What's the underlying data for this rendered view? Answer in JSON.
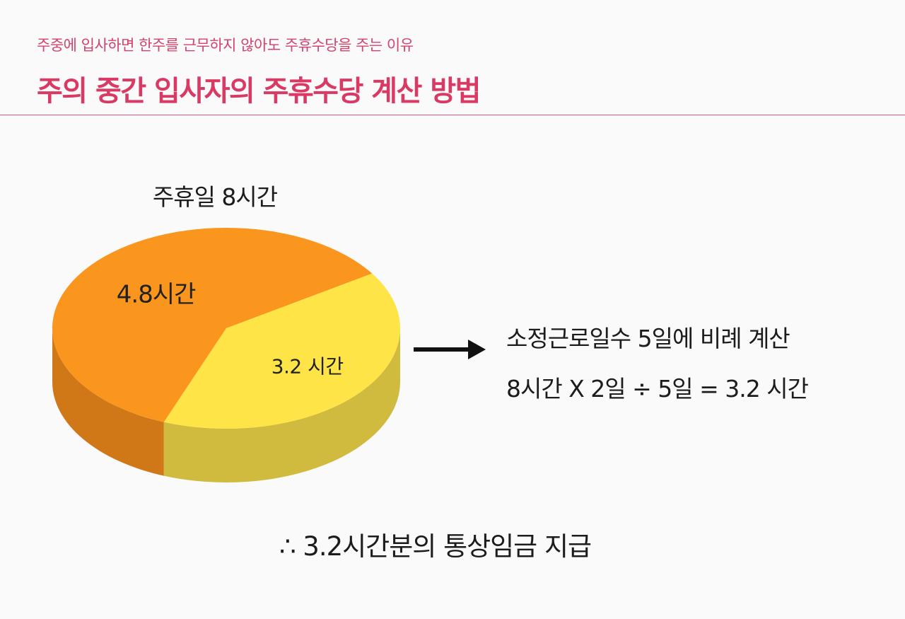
{
  "header": {
    "subtitle": "주중에 입사하면 한주를 근무하지 않아도 주휴수당을 주는 이유",
    "title": "주의 중간 입사자의 주휴수당 계산 방법"
  },
  "chart_data": {
    "type": "pie",
    "style": "3d",
    "title": "주휴일 8시간",
    "total": 8,
    "slices": [
      {
        "label": "4.8시간",
        "value": 4.8,
        "color": "#fa951e",
        "side_color": "#d07818"
      },
      {
        "label": "3.2 시간",
        "value": 3.2,
        "color": "#fee447",
        "side_color": "#d0bb3e"
      }
    ]
  },
  "explanation": {
    "line1": "소정근로일수 5일에 비례 계산",
    "line2": "8시간 X 2일 ÷ 5일 = 3.2 시간"
  },
  "conclusion": "∴ 3.2시간분의 통상임금 지급"
}
